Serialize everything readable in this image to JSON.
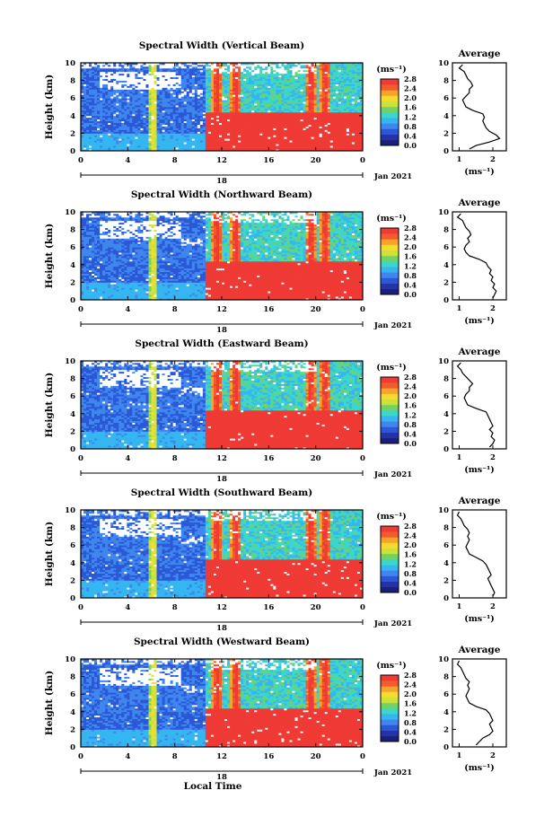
{
  "figure": {
    "xlabel": "Local Time"
  },
  "colormap": {
    "stops": [
      "#1a1f7a",
      "#2433a8",
      "#2a58d6",
      "#3f86ee",
      "#35b6f0",
      "#3ed6c9",
      "#6fd36a",
      "#c9e23c",
      "#f2dd2e",
      "#f7a52a",
      "#f45b2c",
      "#ef3a35"
    ],
    "gap_color": "#ffffff"
  },
  "chart_data": [
    {
      "type": "heatmap",
      "title": "Spectral Width (Vertical Beam)",
      "ylabel": "Height (km)",
      "x_ticks": [
        "0",
        "4",
        "8",
        "12",
        "16",
        "20",
        "0"
      ],
      "y_ticks": [
        "0",
        "2",
        "4",
        "6",
        "8",
        "10"
      ],
      "date_tick": "18",
      "date_label": "Jan 2021",
      "xlim": [
        0,
        24
      ],
      "ylim": [
        0,
        10
      ],
      "colorbar": {
        "label": "(ms⁻¹)",
        "ticks": [
          "0.0",
          "0.4",
          "0.8",
          "1.2",
          "1.6",
          "2.0",
          "2.4",
          "2.8"
        ],
        "range": [
          0,
          2.8
        ]
      },
      "profile": {
        "title": "Average",
        "xlabel": "(ms⁻¹)",
        "x_ticks": [
          "1",
          "2"
        ],
        "y_ticks": [
          "0",
          "2",
          "4",
          "6",
          "8",
          "10"
        ],
        "xlim": [
          0.8,
          2.4
        ],
        "height": [
          0.2,
          0.6,
          1.0,
          1.4,
          1.8,
          2.2,
          2.6,
          3.0,
          3.4,
          3.8,
          4.2,
          4.6,
          5.0,
          5.4,
          5.8,
          6.2,
          6.6,
          7.0,
          7.4,
          7.8,
          8.2,
          8.6,
          9.0,
          9.4,
          9.8
        ],
        "width": [
          1.3,
          1.5,
          1.9,
          2.2,
          2.1,
          1.9,
          1.8,
          1.75,
          1.7,
          1.75,
          1.7,
          1.4,
          1.2,
          1.15,
          1.1,
          1.2,
          1.3,
          1.3,
          1.4,
          1.35,
          1.25,
          1.2,
          1.15,
          1.0,
          1.1
        ]
      }
    },
    {
      "type": "heatmap",
      "title": "Spectral Width (Northward Beam)",
      "ylabel": "Height (km)",
      "x_ticks": [
        "0",
        "4",
        "8",
        "12",
        "16",
        "20",
        "0"
      ],
      "y_ticks": [
        "0",
        "2",
        "4",
        "6",
        "8",
        "10"
      ],
      "date_tick": "18",
      "date_label": "Jan 2021",
      "xlim": [
        0,
        24
      ],
      "ylim": [
        0,
        10
      ],
      "colorbar": {
        "label": "(ms⁻¹)",
        "ticks": [
          "0.0",
          "0.4",
          "0.8",
          "1.2",
          "1.6",
          "2.0",
          "2.4",
          "2.8"
        ],
        "range": [
          0,
          2.8
        ]
      },
      "profile": {
        "title": "Average",
        "xlabel": "(ms⁻¹)",
        "x_ticks": [
          "1",
          "2"
        ],
        "y_ticks": [
          "0",
          "2",
          "4",
          "6",
          "8",
          "10"
        ],
        "xlim": [
          0.8,
          2.4
        ],
        "height": [
          0.2,
          0.6,
          1.0,
          1.4,
          1.8,
          2.2,
          2.6,
          3.0,
          3.4,
          3.8,
          4.2,
          4.6,
          5.0,
          5.4,
          5.8,
          6.2,
          6.6,
          7.0,
          7.4,
          7.8,
          8.2,
          8.6,
          9.0,
          9.4,
          9.8
        ],
        "width": [
          2.0,
          2.05,
          2.1,
          2.0,
          2.05,
          1.95,
          2.0,
          1.9,
          1.95,
          1.85,
          1.8,
          1.6,
          1.3,
          1.2,
          1.15,
          1.2,
          1.3,
          1.25,
          1.35,
          1.3,
          1.2,
          1.15,
          1.1,
          0.95,
          1.05
        ]
      }
    },
    {
      "type": "heatmap",
      "title": "Spectral Width (Eastward Beam)",
      "ylabel": "Height (km)",
      "x_ticks": [
        "0",
        "4",
        "8",
        "12",
        "16",
        "20",
        "0"
      ],
      "y_ticks": [
        "0",
        "2",
        "4",
        "6",
        "8",
        "10"
      ],
      "date_tick": "18",
      "date_label": "Jan 2021",
      "xlim": [
        0,
        24
      ],
      "ylim": [
        0,
        10
      ],
      "colorbar": {
        "label": "(ms⁻¹)",
        "ticks": [
          "0.0",
          "0.4",
          "0.8",
          "1.2",
          "1.6",
          "2.0",
          "2.4",
          "2.8"
        ],
        "range": [
          0,
          2.8
        ]
      },
      "profile": {
        "title": "Average",
        "xlabel": "(ms⁻¹)",
        "x_ticks": [
          "1",
          "2"
        ],
        "y_ticks": [
          "0",
          "2",
          "4",
          "6",
          "8",
          "10"
        ],
        "xlim": [
          0.8,
          2.4
        ],
        "height": [
          0.2,
          0.6,
          1.0,
          1.4,
          1.8,
          2.2,
          2.6,
          3.0,
          3.4,
          3.8,
          4.2,
          4.6,
          5.0,
          5.4,
          5.8,
          6.2,
          6.6,
          7.0,
          7.4,
          7.8,
          8.2,
          8.6,
          9.0,
          9.4,
          9.8
        ],
        "width": [
          1.9,
          2.0,
          2.05,
          1.95,
          2.0,
          1.9,
          2.0,
          1.95,
          1.9,
          1.85,
          1.8,
          1.5,
          1.25,
          1.2,
          1.15,
          1.2,
          1.3,
          1.3,
          1.4,
          1.3,
          1.2,
          1.1,
          1.05,
          0.95,
          1.05
        ]
      }
    },
    {
      "type": "heatmap",
      "title": "Spectral Width (Southward Beam)",
      "ylabel": "Height (km)",
      "x_ticks": [
        "0",
        "4",
        "8",
        "12",
        "16",
        "20",
        "0"
      ],
      "y_ticks": [
        "0",
        "2",
        "4",
        "6",
        "8",
        "10"
      ],
      "date_tick": "18",
      "date_label": "Jan 2021",
      "xlim": [
        0,
        24
      ],
      "ylim": [
        0,
        10
      ],
      "colorbar": {
        "label": "(ms⁻¹)",
        "ticks": [
          "0.0",
          "0.4",
          "0.8",
          "1.2",
          "1.6",
          "2.0",
          "2.4",
          "2.8"
        ],
        "range": [
          0,
          2.8
        ]
      },
      "profile": {
        "title": "Average",
        "xlabel": "(ms⁻¹)",
        "x_ticks": [
          "1",
          "2"
        ],
        "y_ticks": [
          "0",
          "2",
          "4",
          "6",
          "8",
          "10"
        ],
        "xlim": [
          0.8,
          2.4
        ],
        "height": [
          0.2,
          0.6,
          1.0,
          1.4,
          1.8,
          2.2,
          2.6,
          3.0,
          3.4,
          3.8,
          4.2,
          4.6,
          5.0,
          5.4,
          5.8,
          6.2,
          6.6,
          7.0,
          7.4,
          7.8,
          8.2,
          8.6,
          9.0,
          9.4,
          9.8
        ],
        "width": [
          2.0,
          2.05,
          2.0,
          1.95,
          1.9,
          1.85,
          1.95,
          1.9,
          1.85,
          1.8,
          1.7,
          1.5,
          1.3,
          1.25,
          1.2,
          1.25,
          1.3,
          1.25,
          1.3,
          1.25,
          1.15,
          1.1,
          1.05,
          0.95,
          1.0
        ]
      }
    },
    {
      "type": "heatmap",
      "title": "Spectral Width (Westward Beam)",
      "ylabel": "Height (km)",
      "x_ticks": [
        "0",
        "4",
        "8",
        "12",
        "16",
        "20",
        "0"
      ],
      "y_ticks": [
        "0",
        "2",
        "4",
        "6",
        "8",
        "10"
      ],
      "date_tick": "18",
      "date_label": "Jan 2021",
      "xlim": [
        0,
        24
      ],
      "ylim": [
        0,
        10
      ],
      "colorbar": {
        "label": "(ms⁻¹)",
        "ticks": [
          "0.0",
          "0.4",
          "0.8",
          "1.2",
          "1.6",
          "2.0",
          "2.4",
          "2.8"
        ],
        "range": [
          0,
          2.8
        ]
      },
      "profile": {
        "title": "Average",
        "xlabel": "(ms⁻¹)",
        "x_ticks": [
          "1",
          "2"
        ],
        "y_ticks": [
          "0",
          "2",
          "4",
          "6",
          "8",
          "10"
        ],
        "xlim": [
          0.8,
          2.4
        ],
        "height": [
          0.2,
          0.6,
          1.0,
          1.4,
          1.8,
          2.2,
          2.6,
          3.0,
          3.4,
          3.8,
          4.2,
          4.6,
          5.0,
          5.4,
          5.8,
          6.2,
          6.6,
          7.0,
          7.4,
          7.8,
          8.2,
          8.6,
          9.0,
          9.4,
          9.8
        ],
        "width": [
          1.5,
          1.6,
          1.7,
          1.9,
          2.0,
          1.95,
          1.9,
          2.0,
          1.95,
          1.9,
          1.8,
          1.5,
          1.3,
          1.25,
          1.2,
          1.25,
          1.3,
          1.25,
          1.3,
          1.2,
          1.15,
          1.1,
          1.05,
          0.95,
          1.0
        ]
      }
    }
  ]
}
